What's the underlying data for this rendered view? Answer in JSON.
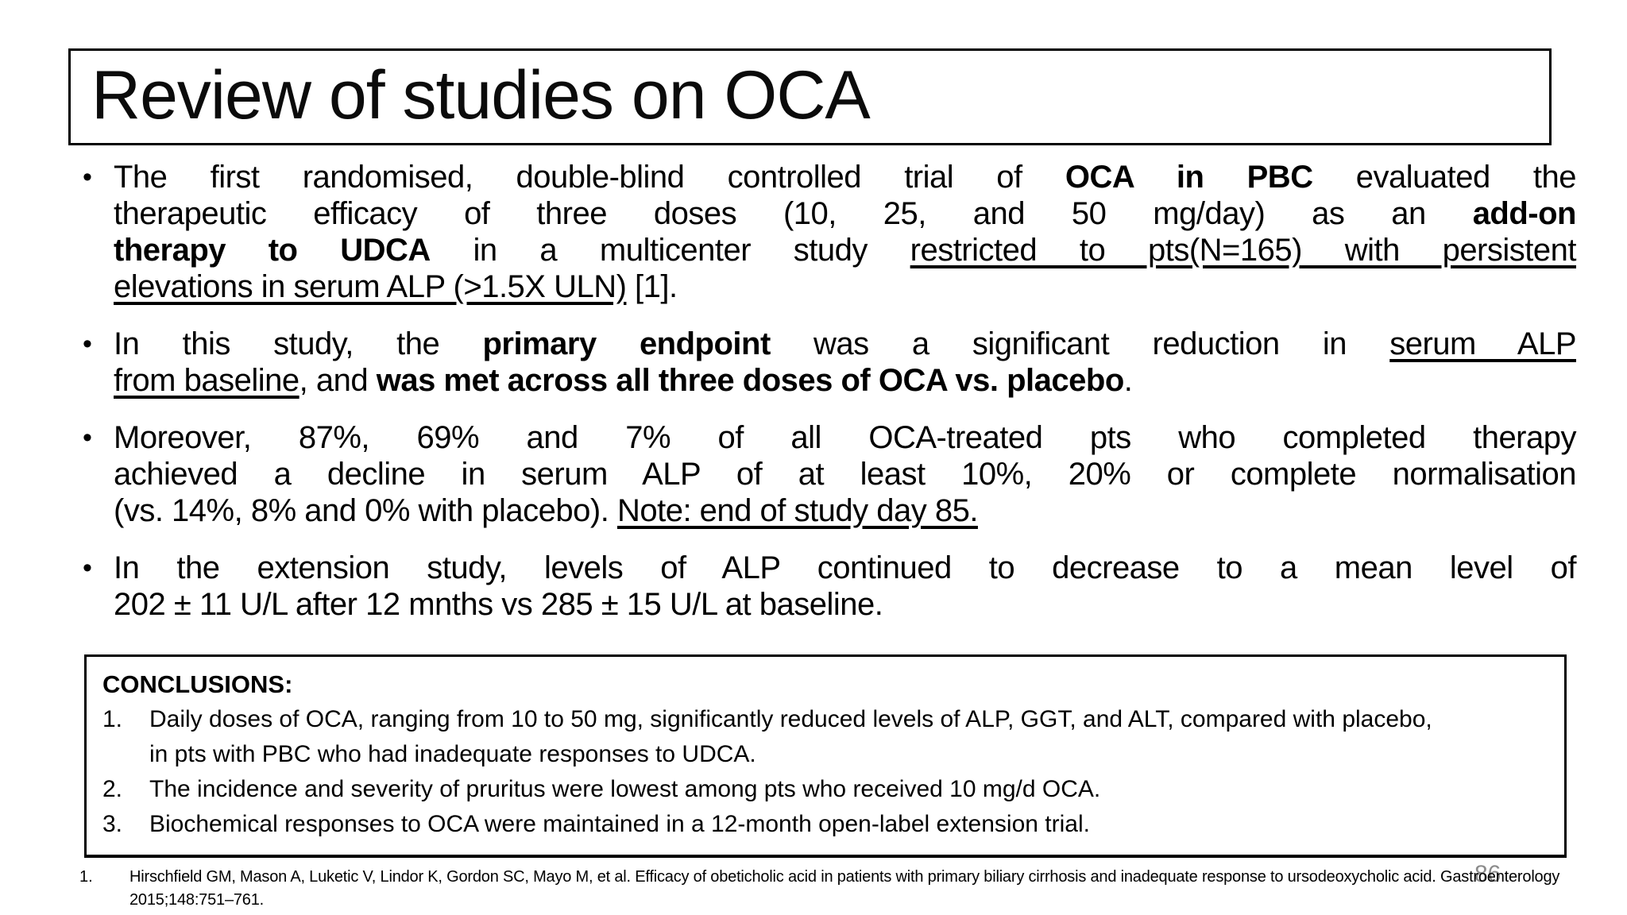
{
  "slide": {
    "title": "Review of studies on OCA",
    "page_number": "86",
    "colors": {
      "background": "#ffffff",
      "text": "#000000",
      "border": "#000000",
      "page_number": "#8c8c8c"
    }
  },
  "bullets": [
    {
      "lines": [
        {
          "justify": true,
          "runs": [
            {
              "text": "The first randomised, double-blind controlled trial of ",
              "style": "regular"
            },
            {
              "text": "OCA in PBC",
              "style": "bold"
            },
            {
              "text": " evaluated the",
              "style": "regular"
            }
          ]
        },
        {
          "justify": true,
          "runs": [
            {
              "text": "therapeutic efficacy of three doses (10, 25, and 50 mg/day) as an ",
              "style": "regular"
            },
            {
              "text": "add-on",
              "style": "bold"
            }
          ]
        },
        {
          "justify": true,
          "runs": [
            {
              "text": "therapy to UDCA",
              "style": "bold"
            },
            {
              "text": " in a multicenter study ",
              "style": "regular"
            },
            {
              "text": "restricted to pts(N=165) with persistent",
              "style": "underline"
            }
          ]
        },
        {
          "justify": false,
          "runs": [
            {
              "text": "elevations in serum ALP (>1.5X ULN)",
              "style": "underline"
            },
            {
              "text": " [1].",
              "style": "regular"
            }
          ]
        }
      ]
    },
    {
      "lines": [
        {
          "justify": true,
          "runs": [
            {
              "text": "In this study, the ",
              "style": "regular"
            },
            {
              "text": "primary endpoint",
              "style": "bold"
            },
            {
              "text": " was a significant reduction in ",
              "style": "regular"
            },
            {
              "text": "serum ALP",
              "style": "underline"
            }
          ]
        },
        {
          "justify": false,
          "runs": [
            {
              "text": "from baseline",
              "style": "underline"
            },
            {
              "text": ", and ",
              "style": "regular"
            },
            {
              "text": "was met across all three doses of OCA vs. placebo",
              "style": "bold"
            },
            {
              "text": ".",
              "style": "regular"
            }
          ]
        }
      ]
    },
    {
      "lines": [
        {
          "justify": true,
          "runs": [
            {
              "text": "Moreover, 87%, 69% and 7% of all OCA-treated pts who completed therapy",
              "style": "regular"
            }
          ]
        },
        {
          "justify": true,
          "runs": [
            {
              "text": "achieved a decline in serum ALP of at least 10%, 20% or complete normalisation",
              "style": "regular"
            }
          ]
        },
        {
          "justify": false,
          "runs": [
            {
              "text": "(vs. 14%, 8% and 0% with placebo). ",
              "style": "regular"
            },
            {
              "text": "Note: end of study day 85.",
              "style": "underline"
            }
          ]
        }
      ]
    },
    {
      "lines": [
        {
          "justify": true,
          "runs": [
            {
              "text": "In the extension study, levels of ALP continued to decrease to a mean level of",
              "style": "regular"
            }
          ]
        },
        {
          "justify": false,
          "runs": [
            {
              "text": "202 ± 11 U/L after 12 mnths vs 285 ± 15 U/L at baseline.",
              "style": "regular"
            }
          ]
        }
      ]
    }
  ],
  "conclusions": {
    "heading": "CONCLUSIONS:",
    "items": [
      {
        "number": "1.",
        "text": "Daily doses of OCA, ranging from 10 to 50 mg, significantly reduced levels of ALP, GGT, and ALT, compared with placebo, in pts with PBC who had inadequate responses to UDCA."
      },
      {
        "number": "2.",
        "text": "The incidence and severity of pruritus were lowest among pts who received 10 mg/d OCA."
      },
      {
        "number": "3.",
        "text": "Biochemical responses to OCA were maintained in a 12-month open-label extension trial."
      }
    ]
  },
  "footnote": {
    "number": "1.",
    "text": "Hirschfield GM, Mason A, Luketic V, Lindor K, Gordon SC, Mayo M, et al. Efficacy of obeticholic acid in patients with primary biliary cirrhosis and inadequate response to ursodeoxycholic acid. Gastroenterology 2015;148:751–761."
  }
}
